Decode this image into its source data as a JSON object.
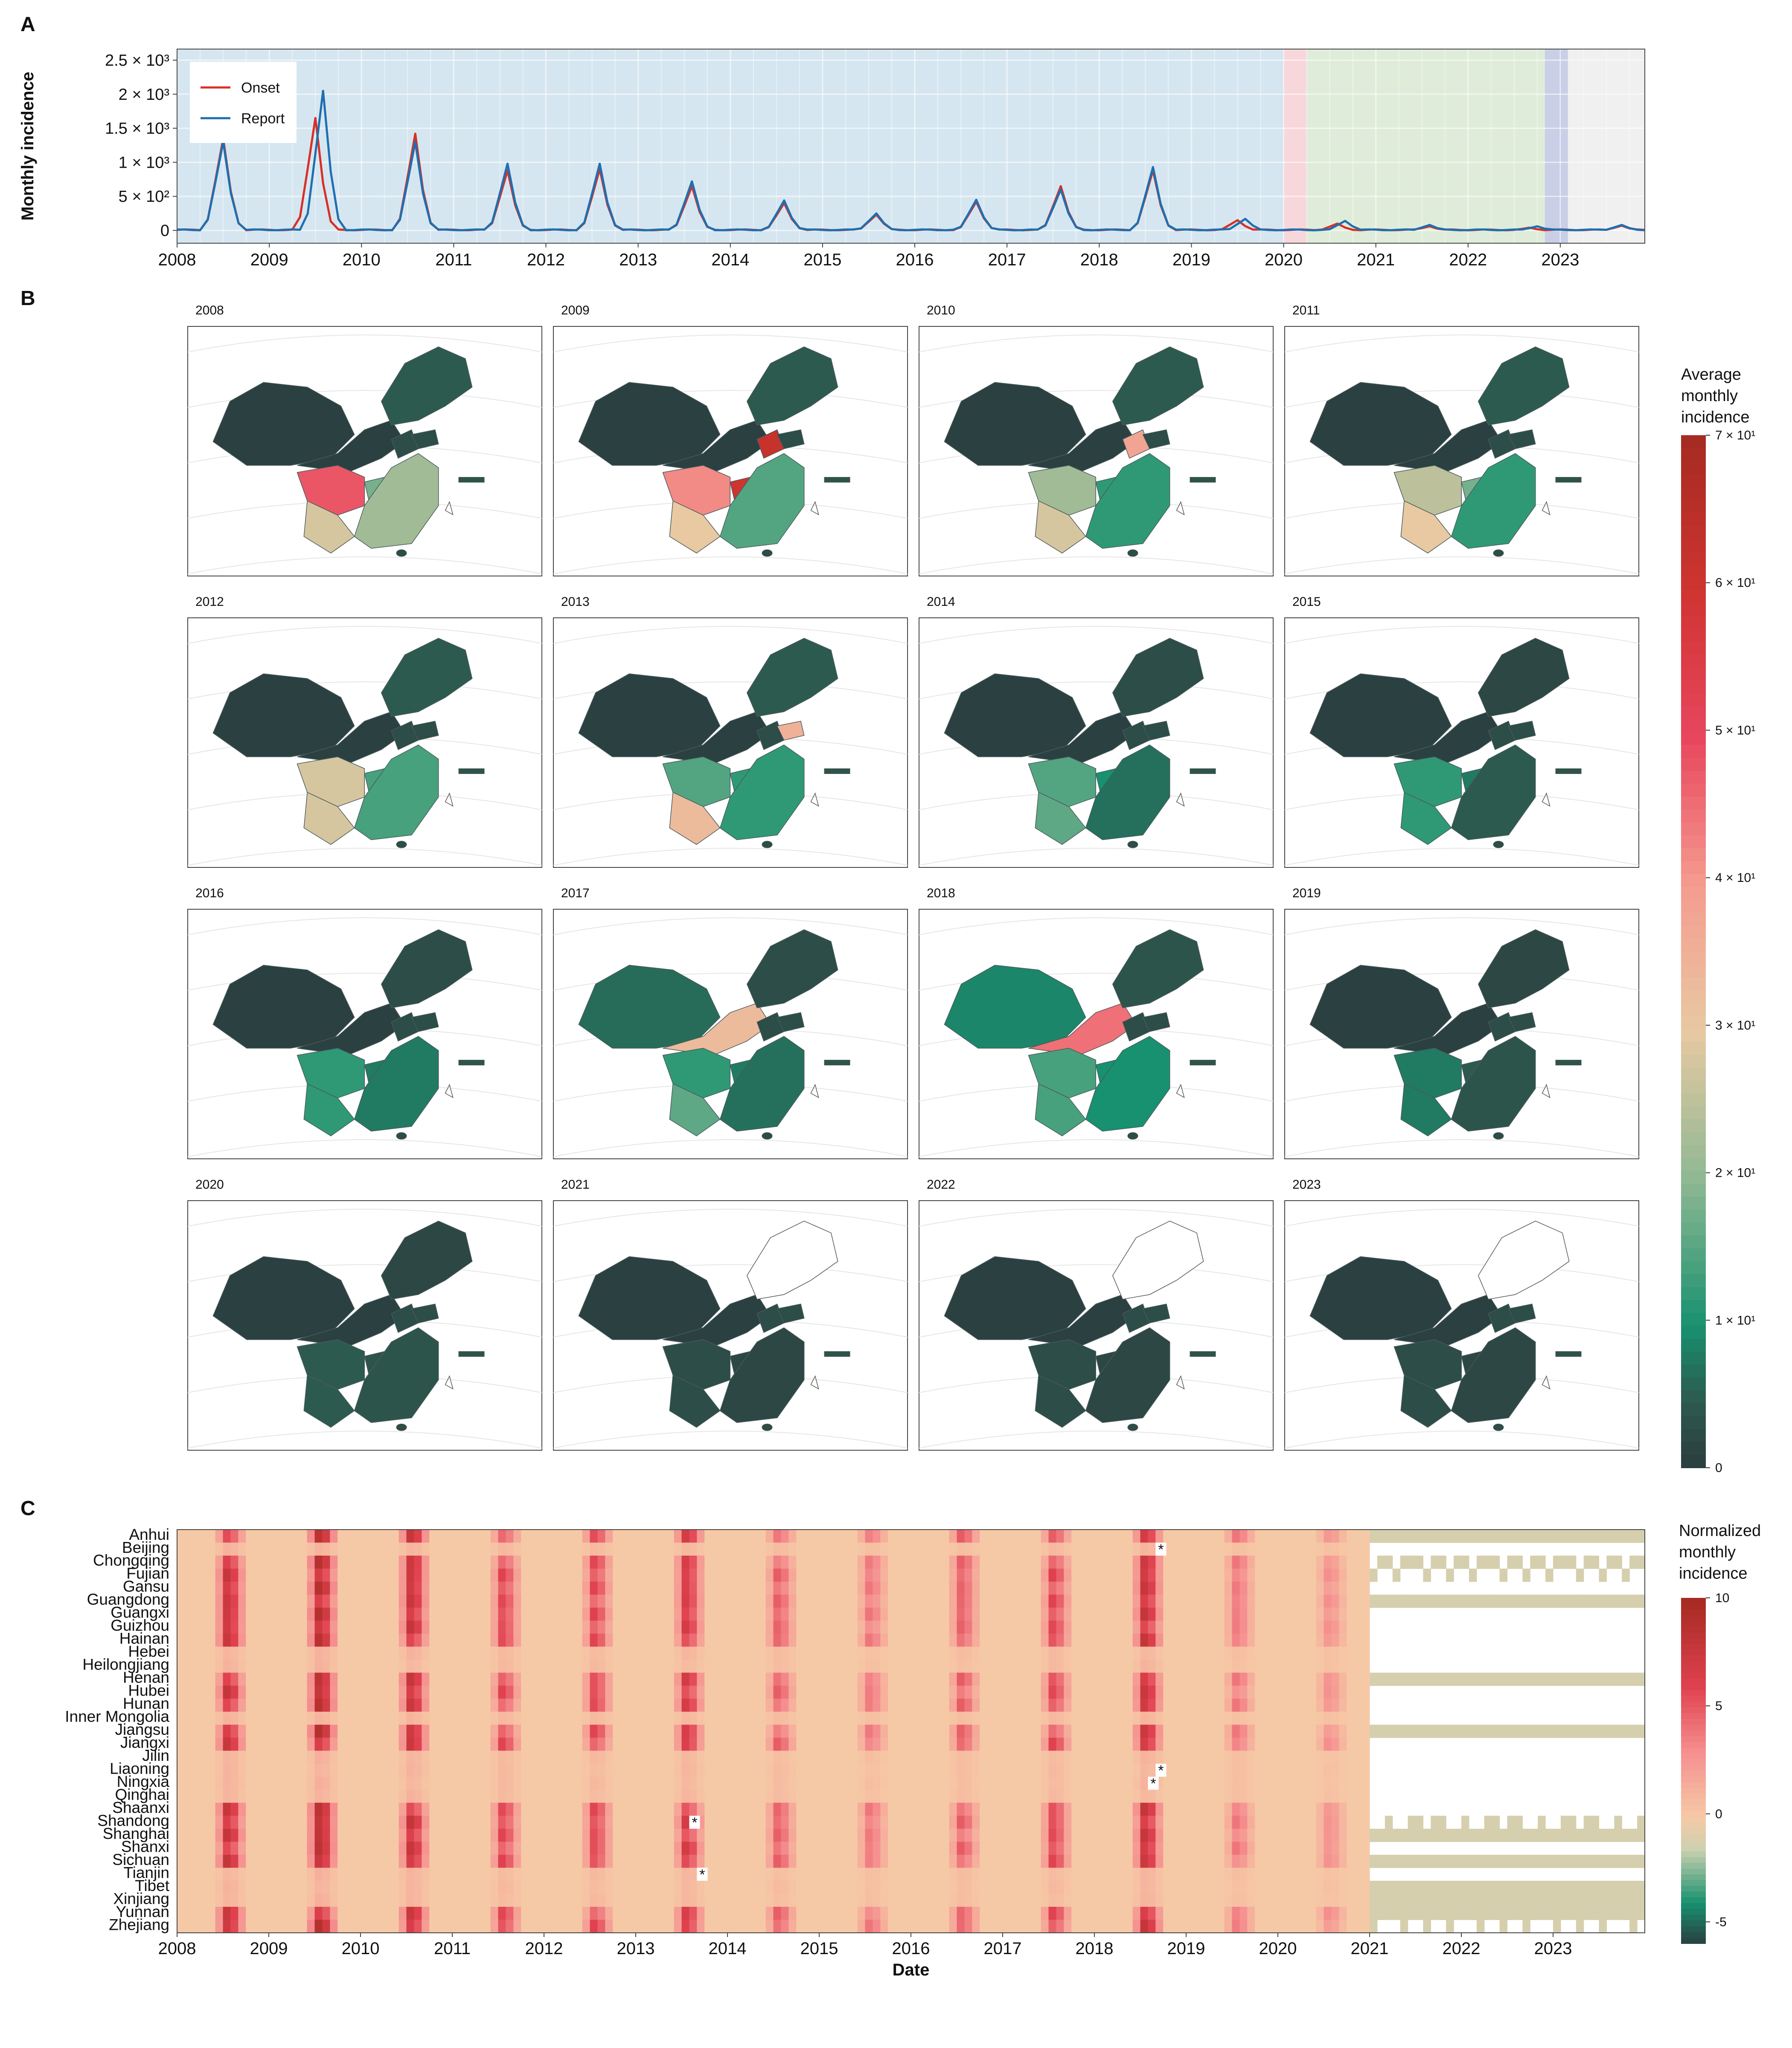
{
  "panel_labels": {
    "a": "A",
    "b": "B",
    "c": "C"
  },
  "chart_data": [
    {
      "panel": "A",
      "type": "line",
      "ylabel": "Monthly incidence",
      "ytick_labels": [
        "0",
        "5 × 10²",
        "1 × 10³",
        "1.5 × 10³",
        "2 × 10³",
        "2.5 × 10³"
      ],
      "ytick_values": [
        0,
        500,
        1000,
        1500,
        2000,
        2500
      ],
      "ylim": [
        0,
        2600
      ],
      "xlim": [
        "2008-01",
        "2023-12"
      ],
      "xtick_labels": [
        "2008",
        "2009",
        "2010",
        "2011",
        "2012",
        "2013",
        "2014",
        "2015",
        "2016",
        "2017",
        "2018",
        "2019",
        "2020",
        "2021",
        "2022",
        "2023"
      ],
      "legend": {
        "placement": "top-left",
        "entries": [
          "Onset",
          "Report"
        ]
      },
      "background_periods": [
        {
          "start": "2008-01",
          "end": "2020-01",
          "color": "#d6e6f0"
        },
        {
          "start": "2020-01",
          "end": "2020-04",
          "color": "#f8d7dc"
        },
        {
          "start": "2020-04",
          "end": "2022-11",
          "color": "#dfecd9"
        },
        {
          "start": "2022-11",
          "end": "2023-02",
          "color": "#c8cfe6"
        },
        {
          "start": "2023-02",
          "end": "2023-12",
          "color": "#f0f0f0"
        }
      ],
      "series": [
        {
          "name": "Onset",
          "color": "#d73027",
          "peaks": [
            {
              "date": "2008-07",
              "value": 1350
            },
            {
              "date": "2009-07",
              "value": 1650
            },
            {
              "date": "2010-08",
              "value": 1420
            },
            {
              "date": "2011-08",
              "value": 880
            },
            {
              "date": "2012-08",
              "value": 900
            },
            {
              "date": "2013-08",
              "value": 650
            },
            {
              "date": "2014-08",
              "value": 400
            },
            {
              "date": "2015-08",
              "value": 230
            },
            {
              "date": "2016-09",
              "value": 420
            },
            {
              "date": "2017-08",
              "value": 650
            },
            {
              "date": "2018-08",
              "value": 880
            },
            {
              "date": "2019-07",
              "value": 150
            },
            {
              "date": "2020-08",
              "value": 100
            },
            {
              "date": "2021-08",
              "value": 60
            },
            {
              "date": "2022-09",
              "value": 40
            },
            {
              "date": "2023-09",
              "value": 70
            }
          ]
        },
        {
          "name": "Report",
          "color": "#1f6fb0",
          "peaks": [
            {
              "date": "2008-07",
              "value": 1300
            },
            {
              "date": "2009-08",
              "value": 2050
            },
            {
              "date": "2010-08",
              "value": 1300
            },
            {
              "date": "2011-08",
              "value": 980
            },
            {
              "date": "2012-08",
              "value": 980
            },
            {
              "date": "2013-08",
              "value": 720
            },
            {
              "date": "2014-08",
              "value": 440
            },
            {
              "date": "2015-08",
              "value": 250
            },
            {
              "date": "2016-09",
              "value": 450
            },
            {
              "date": "2017-08",
              "value": 600
            },
            {
              "date": "2018-08",
              "value": 930
            },
            {
              "date": "2019-08",
              "value": 170
            },
            {
              "date": "2020-09",
              "value": 140
            },
            {
              "date": "2021-08",
              "value": 80
            },
            {
              "date": "2022-10",
              "value": 60
            },
            {
              "date": "2023-09",
              "value": 80
            }
          ]
        }
      ]
    },
    {
      "panel": "B",
      "type": "heatmap",
      "legend": {
        "title": "Average monthly incidence",
        "tick_labels": [
          "0",
          "1 × 10¹",
          "2 × 10¹",
          "3 × 10¹",
          "4 × 10¹",
          "5 × 10¹",
          "6 × 10¹",
          "7 × 10¹"
        ],
        "tick_values": [
          0,
          10,
          20,
          30,
          40,
          50,
          60,
          70
        ],
        "range": [
          0,
          70
        ]
      },
      "panels": [
        {
          "year": "2008",
          "hot": {
            "sw": 48,
            "sc": 28,
            "cq": 18,
            "east": 22,
            "ne": 5
          }
        },
        {
          "year": "2009",
          "hot": {
            "sw": 42,
            "sc": 30,
            "cq": 60,
            "east": 15,
            "ne": 5,
            "hn": 62
          }
        },
        {
          "year": "2010",
          "hot": {
            "sw": 22,
            "sc": 28,
            "cq": 12,
            "east": 12,
            "ne": 5,
            "hn": 38
          }
        },
        {
          "year": "2011",
          "hot": {
            "sw": 25,
            "sc": 30,
            "cq": 18,
            "east": 12,
            "ne": 5
          }
        },
        {
          "year": "2012",
          "hot": {
            "sw": 28,
            "sc": 28,
            "cq": 14,
            "east": 14,
            "ne": 5
          }
        },
        {
          "year": "2013",
          "hot": {
            "sw": 15,
            "sc": 33,
            "cq": 12,
            "east": 12,
            "ne": 5,
            "sd": 35
          }
        },
        {
          "year": "2014",
          "hot": {
            "sw": 15,
            "sc": 16,
            "cq": 10,
            "east": 7,
            "ne": 3
          }
        },
        {
          "year": "2015",
          "hot": {
            "sw": 12,
            "sc": 12,
            "cq": 8,
            "east": 5,
            "ne": 2
          }
        },
        {
          "year": "2016",
          "hot": {
            "sw": 12,
            "sc": 12,
            "cq": 8,
            "east": 8,
            "ne": 3
          }
        },
        {
          "year": "2017",
          "hot": {
            "sw": 12,
            "sc": 16,
            "cq": 8,
            "east": 7,
            "ne": 3,
            "nw": 33
          }
        },
        {
          "year": "2018",
          "hot": {
            "sw": 14,
            "sc": 14,
            "cq": 10,
            "east": 10,
            "ne": 4,
            "nw": 45
          }
        },
        {
          "year": "2019",
          "hot": {
            "sw": 8,
            "sc": 8,
            "cq": 5,
            "east": 4,
            "ne": 2
          }
        },
        {
          "year": "2020",
          "hot": {
            "sw": 5,
            "sc": 5,
            "cq": 4,
            "east": 4,
            "ne": 2
          }
        },
        {
          "year": "2021",
          "hot": {
            "sw": 3,
            "sc": 3,
            "cq": 2,
            "east": 2,
            "ne": -1
          }
        },
        {
          "year": "2022",
          "hot": {
            "sw": 3,
            "sc": 3,
            "cq": 2,
            "east": 2,
            "ne": -1
          }
        },
        {
          "year": "2023",
          "hot": {
            "sw": 3,
            "sc": 3,
            "cq": 2,
            "east": 2,
            "ne": -1
          }
        }
      ]
    },
    {
      "panel": "C",
      "type": "heatmap",
      "xlabel": "Date",
      "xtick_labels": [
        "2008",
        "2009",
        "2010",
        "2011",
        "2012",
        "2013",
        "2014",
        "2015",
        "2016",
        "2017",
        "2018",
        "2019",
        "2020",
        "2021",
        "2022",
        "2023"
      ],
      "legend": {
        "title": "Normalized monthly incidence",
        "tick_labels": [
          "10",
          "5",
          "0",
          "-5"
        ],
        "tick_values": [
          10,
          5,
          0,
          -5
        ],
        "range": [
          -6,
          10
        ]
      },
      "provinces": [
        "Anhui",
        "Beijing",
        "Chongqing",
        "Fujian",
        "Gansu",
        "Guangdong",
        "Guangxi",
        "Guizhou",
        "Hainan",
        "Hebei",
        "Heilongjiang",
        "Henan",
        "Hubei",
        "Hunan",
        "Inner Mongolia",
        "Jiangsu",
        "Jiangxi",
        "Jilin",
        "Liaoning",
        "Ningxia",
        "Qinghai",
        "Shaanxi",
        "Shandong",
        "Shanghai",
        "Shanxi",
        "Sichuan",
        "Tianjin",
        "Tibet",
        "Xinjiang",
        "Yunnan",
        "Zhejiang"
      ],
      "markers": [
        {
          "province": "Beijing",
          "date": "2018-09",
          "label": "*"
        },
        {
          "province": "Liaoning",
          "date": "2018-09",
          "label": "*"
        },
        {
          "province": "Ningxia",
          "date": "2018-08",
          "label": "*"
        },
        {
          "province": "Shandong",
          "date": "2013-08",
          "label": "*"
        },
        {
          "province": "Tianjin",
          "date": "2013-09",
          "label": "*"
        }
      ]
    }
  ]
}
